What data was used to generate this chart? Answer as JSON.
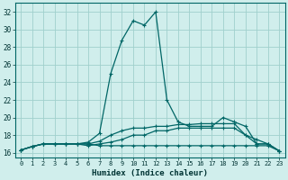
{
  "xlabel": "Humidex (Indice chaleur)",
  "bg_color": "#d0eeec",
  "grid_color": "#a0d0cc",
  "line_color": "#006666",
  "xlim": [
    -0.5,
    23.5
  ],
  "ylim": [
    15.5,
    33.0
  ],
  "xticks": [
    0,
    1,
    2,
    3,
    4,
    5,
    6,
    7,
    8,
    9,
    10,
    11,
    12,
    13,
    14,
    15,
    16,
    17,
    18,
    19,
    20,
    21,
    22,
    23
  ],
  "yticks": [
    16,
    18,
    20,
    22,
    24,
    26,
    28,
    30,
    32
  ],
  "lines": [
    {
      "x": [
        0,
        1,
        2,
        3,
        4,
        5,
        6,
        7,
        8,
        9,
        10,
        11,
        12,
        13,
        14,
        15,
        16,
        17,
        18,
        19,
        20,
        21,
        22,
        23
      ],
      "y": [
        16.3,
        16.7,
        17.0,
        17.0,
        17.0,
        17.0,
        17.2,
        18.2,
        25.0,
        28.8,
        31.0,
        30.5,
        32.0,
        22.0,
        19.5,
        19.0,
        19.0,
        19.0,
        20.0,
        19.5,
        19.0,
        17.0,
        17.0,
        16.2
      ]
    },
    {
      "x": [
        0,
        1,
        2,
        3,
        4,
        5,
        6,
        7,
        8,
        9,
        10,
        11,
        12,
        13,
        14,
        15,
        16,
        17,
        18,
        19,
        20,
        21,
        22,
        23
      ],
      "y": [
        16.3,
        16.7,
        17.0,
        17.0,
        17.0,
        17.0,
        17.0,
        17.3,
        18.0,
        18.5,
        18.8,
        18.8,
        19.0,
        19.0,
        19.2,
        19.2,
        19.3,
        19.3,
        19.3,
        19.3,
        18.0,
        17.0,
        17.0,
        16.2
      ]
    },
    {
      "x": [
        0,
        1,
        2,
        3,
        4,
        5,
        6,
        7,
        8,
        9,
        10,
        11,
        12,
        13,
        14,
        15,
        16,
        17,
        18,
        19,
        20,
        21,
        22,
        23
      ],
      "y": [
        16.3,
        16.7,
        17.0,
        17.0,
        17.0,
        17.0,
        16.8,
        17.0,
        17.2,
        17.5,
        18.0,
        18.0,
        18.5,
        18.5,
        18.8,
        18.8,
        18.8,
        18.8,
        18.8,
        18.8,
        18.0,
        17.5,
        17.0,
        16.2
      ]
    },
    {
      "x": [
        0,
        1,
        2,
        3,
        4,
        5,
        6,
        7,
        8,
        9,
        10,
        11,
        12,
        13,
        14,
        15,
        16,
        17,
        18,
        19,
        20,
        21,
        22,
        23
      ],
      "y": [
        16.3,
        16.7,
        17.0,
        17.0,
        17.0,
        17.0,
        17.0,
        16.8,
        16.8,
        16.8,
        16.8,
        16.8,
        16.8,
        16.8,
        16.8,
        16.8,
        16.8,
        16.8,
        16.8,
        16.8,
        16.8,
        16.8,
        16.8,
        16.2
      ]
    }
  ]
}
